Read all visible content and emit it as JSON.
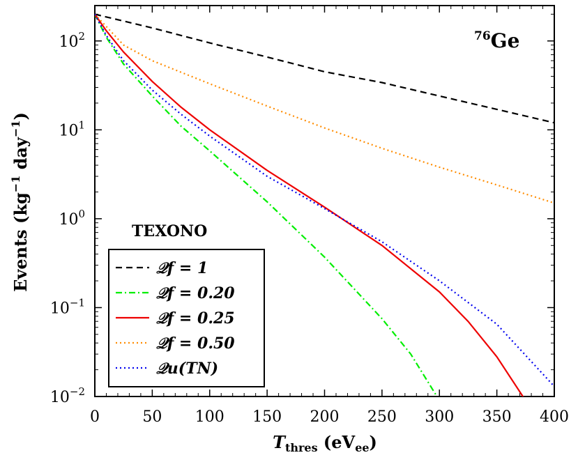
{
  "chart_data": {
    "type": "line",
    "title": "",
    "xlabel": {
      "main": "T",
      "sub": "thres",
      "unit_pre": " (eV",
      "unit_sub": "ee",
      "unit_post": ")"
    },
    "ylabel": {
      "pre": "Events (kg",
      "sup1": "−1",
      "mid": " day",
      "sup2": "−1",
      "post": ")"
    },
    "xlim": [
      0,
      400
    ],
    "ylim": [
      0.01,
      250
    ],
    "y_scale": "log",
    "x_ticks": [
      0,
      50,
      100,
      150,
      200,
      250,
      300,
      350,
      400
    ],
    "y_ticks": [
      {
        "value": 100,
        "base": "10",
        "exp": "2"
      },
      {
        "value": 10,
        "base": "10",
        "exp": "1"
      },
      {
        "value": 1,
        "base": "10",
        "exp": "0"
      },
      {
        "value": 0.1,
        "base": "10",
        "exp": "−1"
      },
      {
        "value": 0.01,
        "base": "10",
        "exp": "−2"
      }
    ],
    "annotations": {
      "isotope_sup": "76",
      "isotope": "Ge",
      "experiment": "TEXONO"
    },
    "legend_position": "lower-left",
    "series": [
      {
        "name": "𝒬f = 1",
        "color": "#000000",
        "dash": "dashed",
        "x": [
          0,
          50,
          100,
          150,
          200,
          250,
          300,
          350,
          400
        ],
        "y": [
          200,
          140,
          95,
          66,
          45,
          34,
          24,
          17,
          12
        ]
      },
      {
        "name": "𝒬f = 0.20",
        "color": "#00ee00",
        "dash": "dashdot",
        "x": [
          0,
          10,
          25,
          50,
          75,
          100,
          150,
          200,
          250,
          275,
          300
        ],
        "y": [
          200,
          110,
          55,
          24,
          11,
          5.8,
          1.55,
          0.37,
          0.075,
          0.03,
          0.009
        ]
      },
      {
        "name": "𝒬f = 0.25",
        "color": "#ee0000",
        "dash": "solid",
        "x": [
          0,
          10,
          25,
          50,
          75,
          100,
          150,
          200,
          250,
          300,
          325,
          350,
          375
        ],
        "y": [
          200,
          130,
          75,
          35,
          18,
          10,
          3.5,
          1.35,
          0.5,
          0.15,
          0.07,
          0.028,
          0.009
        ]
      },
      {
        "name": "𝒬f = 0.50",
        "color": "#ff8c00",
        "dash": "dotted",
        "x": [
          0,
          25,
          50,
          100,
          150,
          200,
          250,
          300,
          350,
          400
        ],
        "y": [
          200,
          90,
          60,
          33,
          18.5,
          10.5,
          6.2,
          3.8,
          2.4,
          1.5
        ]
      },
      {
        "name": "𝒬u(TN)",
        "color": "#0000ee",
        "dash": "dotted",
        "x": [
          0,
          10,
          25,
          50,
          75,
          100,
          150,
          200,
          250,
          300,
          350,
          400
        ],
        "y": [
          200,
          115,
          60,
          28,
          15,
          8.5,
          3.0,
          1.3,
          0.55,
          0.2,
          0.065,
          0.013
        ]
      }
    ]
  }
}
